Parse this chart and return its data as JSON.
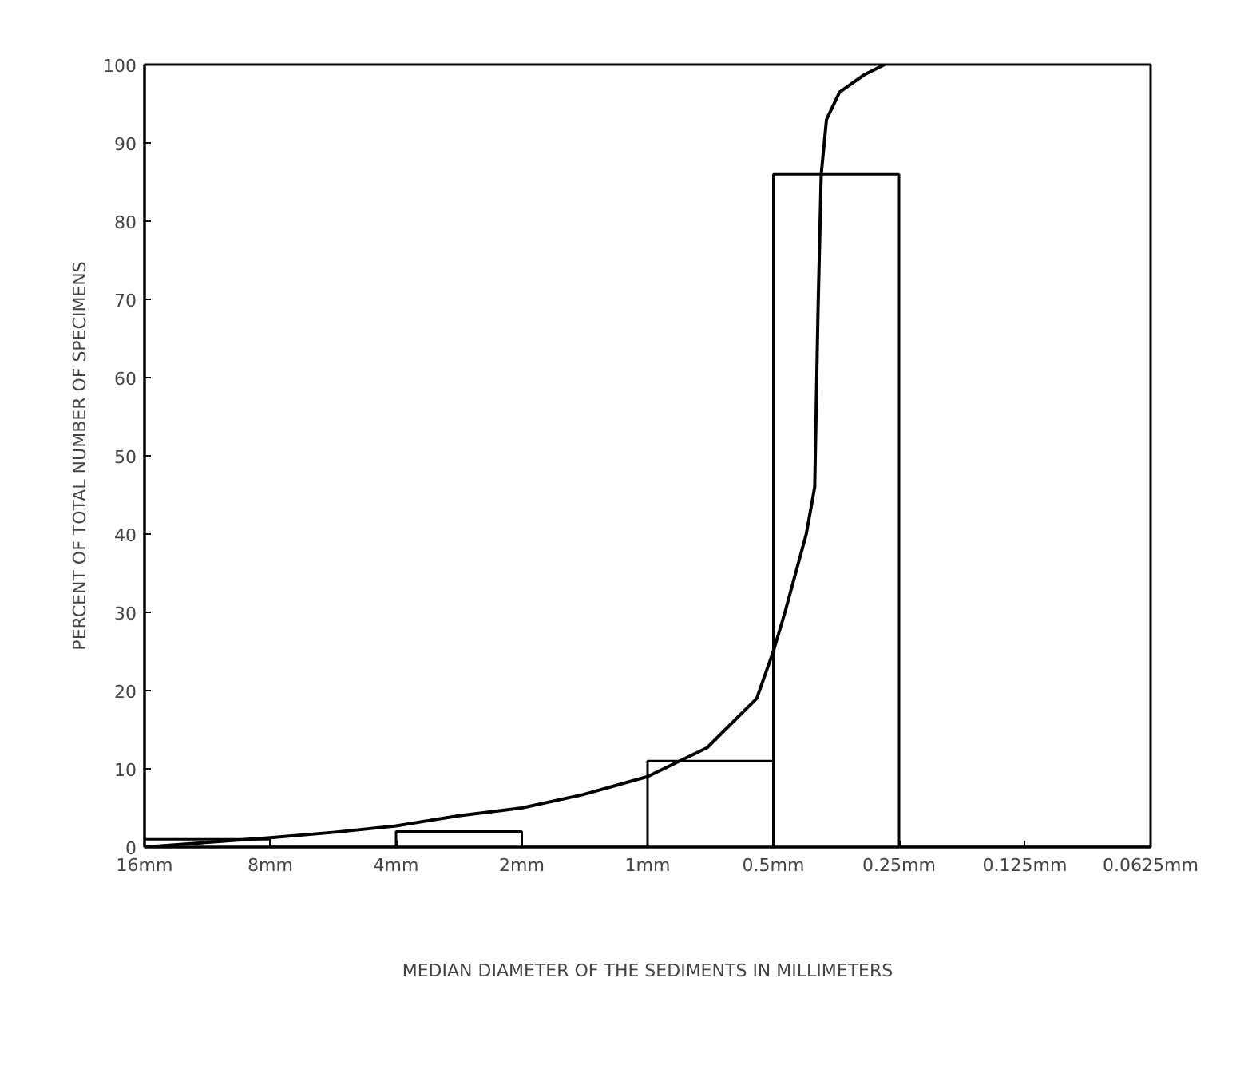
{
  "chart_data": {
    "type": "histogram",
    "xlabel": "MEDIAN DIAMETER OF THE SEDIMENTS IN MILLIMETERS",
    "ylabel": "PERCENT OF TOTAL NUMBER OF SPECIMENS",
    "log": "x",
    "grid": false,
    "xlim": [
      16,
      0.0625
    ],
    "xticks": [
      {
        "value": 16,
        "label": "16mm"
      },
      {
        "value": 8,
        "label": "8mm"
      },
      {
        "value": 4,
        "label": "4mm"
      },
      {
        "value": 2,
        "label": "2mm"
      },
      {
        "value": 1,
        "label": "1mm"
      },
      {
        "value": 0.5,
        "label": "0.5mm"
      },
      {
        "value": 0.25,
        "label": "0.25mm"
      },
      {
        "value": 0.125,
        "label": "0.125mm"
      },
      {
        "value": 0.0625,
        "label": "0.0625mm"
      }
    ],
    "ylim": [
      0,
      100
    ],
    "yticks": [
      0,
      10,
      20,
      30,
      40,
      50,
      60,
      70,
      80,
      90,
      100
    ],
    "series": [
      {
        "color": "#000000",
        "bins": [
          16,
          8,
          4,
          2,
          1,
          0.5,
          0.25,
          0.125,
          0.0625
        ],
        "values": [
          1,
          0,
          2,
          0,
          11,
          86,
          0,
          0
        ]
      },
      {
        "type": "line",
        "color": "#000000",
        "x": [
          16,
          8,
          5.6,
          4,
          2.83,
          2,
          1.43,
          1,
          0.72,
          0.548,
          0.5,
          0.469,
          0.417,
          0.398,
          0.391,
          0.384,
          0.373,
          0.347,
          0.303,
          0.271
        ],
        "values": [
          0,
          1.2,
          1.9,
          2.7,
          4,
          5,
          6.7,
          9,
          12.7,
          19,
          25,
          30,
          40,
          46,
          68,
          86,
          93,
          96.5,
          98.7,
          100
        ]
      }
    ]
  }
}
